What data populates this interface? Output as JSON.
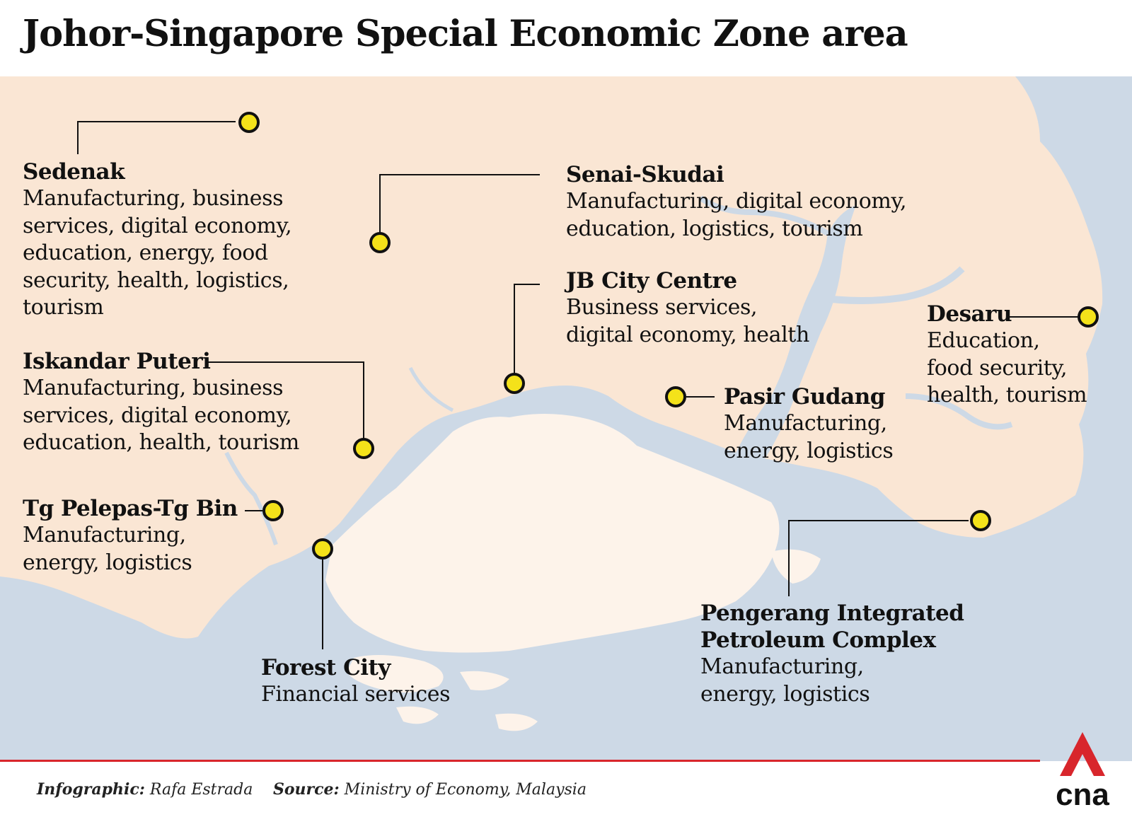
{
  "title": "Johor-Singapore Special Economic Zone area",
  "colors": {
    "land_malaysia": "#fae6d4",
    "land_singapore": "#fdf3ea",
    "water": "#cdd9e6",
    "marker_fill": "#f4e21a",
    "leader_line": "#111111",
    "footer_rule": "#d8262c",
    "logo_red": "#d8262c",
    "logo_text": "#111111"
  },
  "zones": [
    {
      "name": "Sedenak",
      "desc": "Manufacturing, business\nservices, digital economy,\neducation, energy, food\nsecurity, health, logistics,\ntourism"
    },
    {
      "name": "Senai-Skudai",
      "desc": "Manufacturing, digital economy,\neducation, logistics, tourism"
    },
    {
      "name": "JB City Centre",
      "desc": "Business services,\ndigital economy, health"
    },
    {
      "name": "Desaru",
      "desc": "Education,\nfood security,\nhealth, tourism"
    },
    {
      "name": "Iskandar Puteri",
      "desc": "Manufacturing, business\nservices, digital economy,\neducation, health, tourism"
    },
    {
      "name": "Pasir Gudang",
      "desc": "Manufacturing,\nenergy, logistics"
    },
    {
      "name": "Tg Pelepas-Tg Bin",
      "desc": "Manufacturing,\nenergy, logistics"
    },
    {
      "name": "Pengerang Integrated\nPetroleum Complex",
      "desc": "Manufacturing,\nenergy, logistics"
    },
    {
      "name": "Forest City",
      "desc": "Financial services"
    }
  ],
  "credits": {
    "infographic_label": "Infographic:",
    "infographic_value": " Rafa Estrada",
    "source_label": "Source:",
    "source_value": " Ministry of Economy, Malaysia"
  },
  "logo": {
    "text": "cna"
  },
  "icons": {
    "marker": "location-dot-icon",
    "logo": "cna-logo-icon"
  }
}
